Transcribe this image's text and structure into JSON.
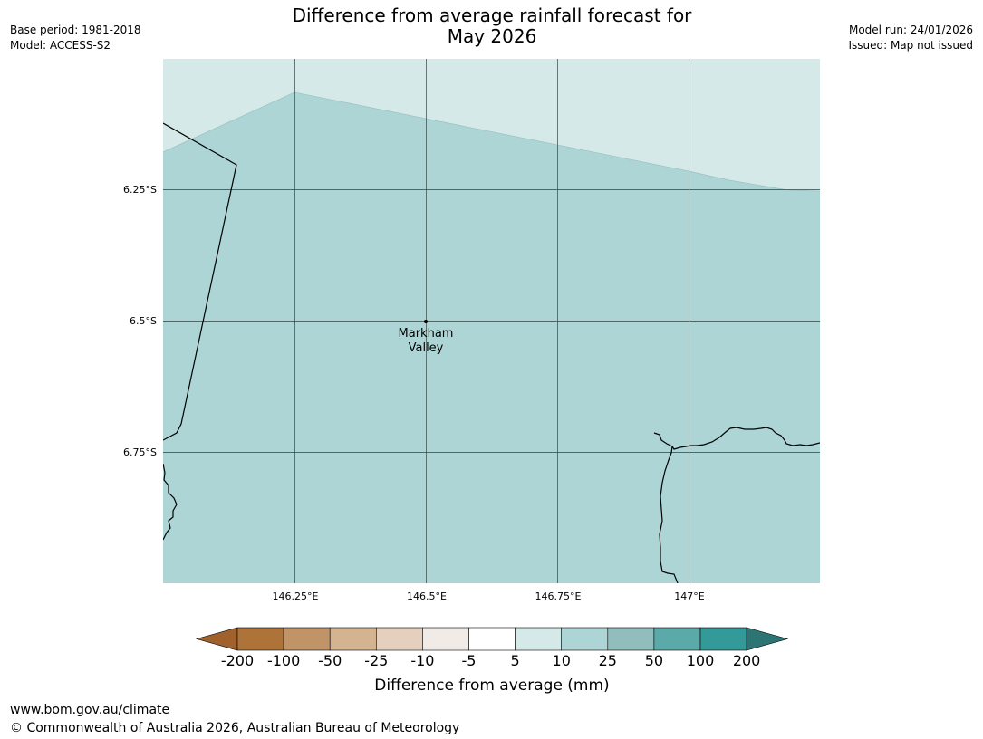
{
  "title": {
    "line1": "Difference from average rainfall forecast for",
    "line2": "May 2026"
  },
  "meta_left": {
    "base_period": "Base period: 1981-2018",
    "model": "Model: ACCESS-S2"
  },
  "meta_right": {
    "model_run": "Model run: 24/01/2026",
    "issued": "Issued: Map not issued"
  },
  "map": {
    "lat_labels": [
      "6.25°S",
      "6.5°S",
      "6.75°S"
    ],
    "lon_labels": [
      "146.25°E",
      "146.5°E",
      "146.75°E",
      "147°E"
    ],
    "place": {
      "name_line1": "Markham",
      "name_line2": "Valley"
    },
    "colors": {
      "class_10_25": "#add5d5",
      "class_5_10": "#d5e9e9"
    }
  },
  "legend": {
    "title": "Difference from average (mm)",
    "boundaries": [
      "-200",
      "-100",
      "-50",
      "-25",
      "-10",
      "-5",
      "5",
      "10",
      "25",
      "50",
      "100",
      "200"
    ],
    "colors": [
      "#a0612d",
      "#ad7339",
      "#c19468",
      "#d4b391",
      "#e5d0be",
      "#f0ebe6",
      "#ffffff",
      "#d5e9e9",
      "#add5d5",
      "#91bdbd",
      "#5ba9a9",
      "#339999",
      "#2d7575"
    ]
  },
  "footer": {
    "url": "www.bom.gov.au/climate",
    "copyright": "© Commonwealth of Australia 2026, Australian Bureau of Meteorology"
  }
}
